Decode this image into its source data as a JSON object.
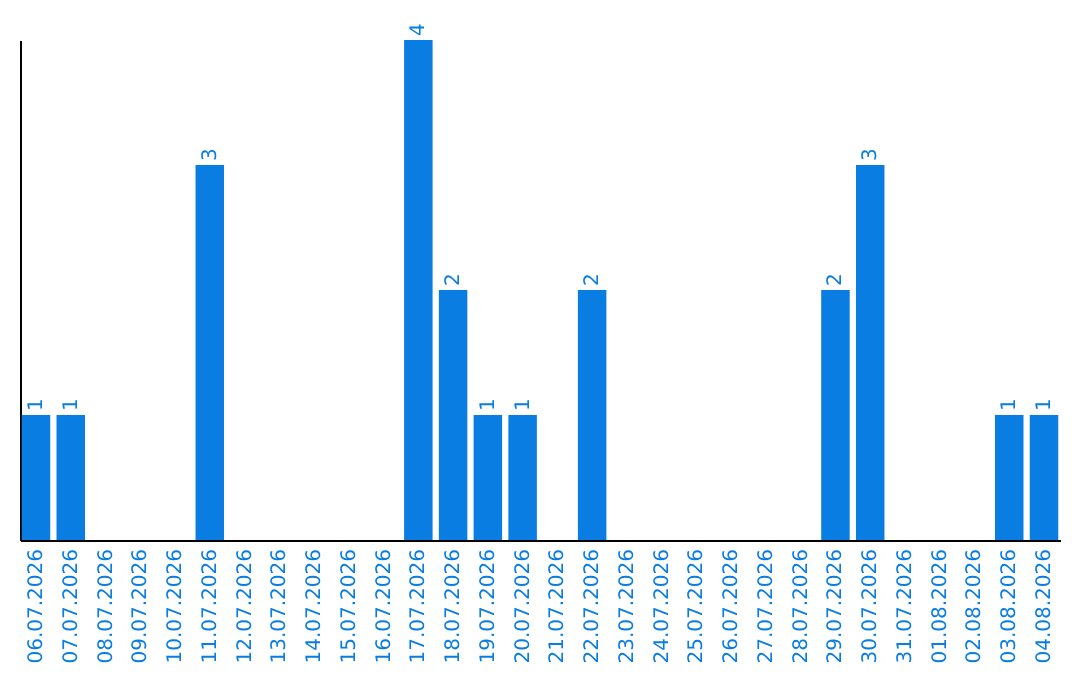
{
  "chart_data": {
    "type": "bar",
    "categories": [
      "06.07.2026",
      "07.07.2026",
      "08.07.2026",
      "09.07.2026",
      "10.07.2026",
      "11.07.2026",
      "12.07.2026",
      "13.07.2026",
      "14.07.2026",
      "15.07.2026",
      "16.07.2026",
      "17.07.2026",
      "18.07.2026",
      "19.07.2026",
      "20.07.2026",
      "21.07.2026",
      "22.07.2026",
      "23.07.2026",
      "24.07.2026",
      "25.07.2026",
      "26.07.2026",
      "27.07.2026",
      "28.07.2026",
      "29.07.2026",
      "30.07.2026",
      "31.07.2026",
      "01.08.2026",
      "02.08.2026",
      "03.08.2026",
      "04.08.2026"
    ],
    "values": [
      1,
      1,
      0,
      0,
      0,
      3,
      0,
      0,
      0,
      0,
      0,
      4,
      2,
      1,
      1,
      0,
      2,
      0,
      0,
      0,
      0,
      0,
      0,
      2,
      3,
      0,
      0,
      0,
      1,
      1
    ],
    "value_labels": [
      "1",
      "1",
      null,
      null,
      null,
      "3",
      null,
      null,
      null,
      null,
      null,
      "4",
      "2",
      "1",
      "1",
      null,
      "2",
      null,
      null,
      null,
      null,
      null,
      null,
      "2",
      "3",
      null,
      null,
      null,
      "1",
      "1"
    ],
    "color": "#0a7de3",
    "tick_labels": "x"
  }
}
